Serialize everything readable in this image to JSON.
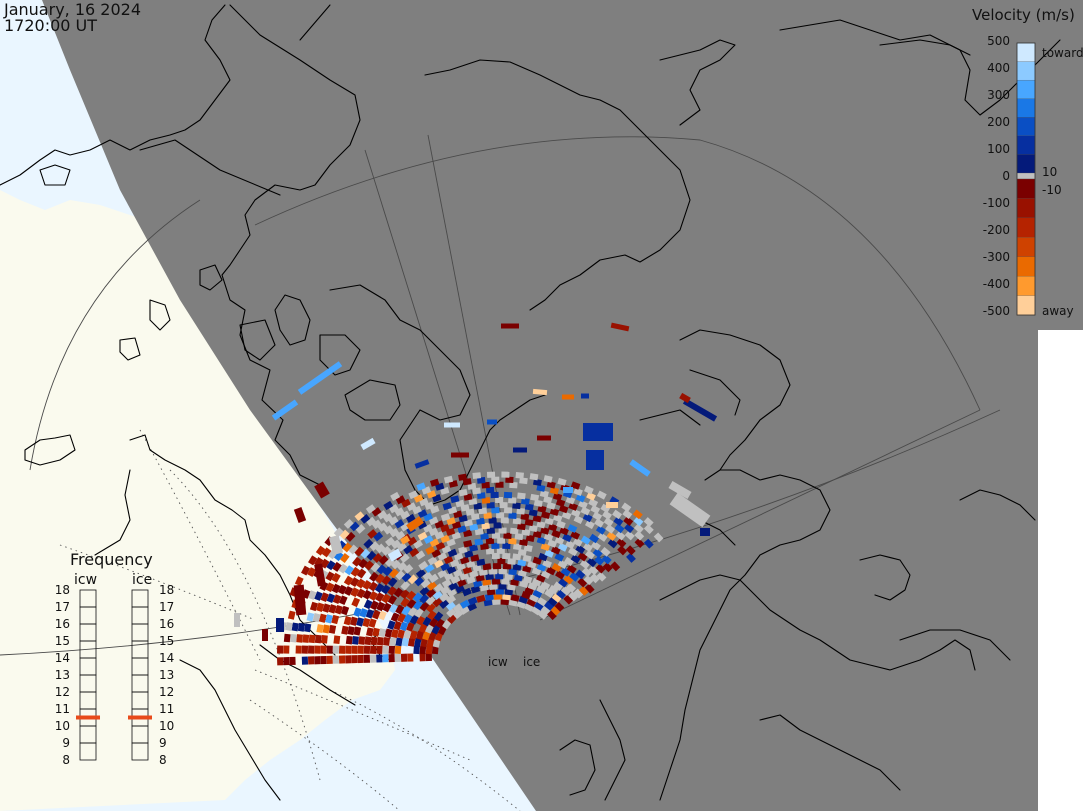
{
  "title": {
    "date": "January, 16 2024",
    "time": "1720:00 UT"
  },
  "colorbar": {
    "title": "Velocity (m/s)",
    "ticks_left": [
      "500",
      "400",
      "300",
      "200",
      "100",
      "0",
      "-100",
      "-200",
      "-300",
      "-400",
      "-500"
    ],
    "label_toward": "toward",
    "label_away": "away",
    "label_pos": "10",
    "label_neg": "-10",
    "toward_colors": [
      "#cfe9ff",
      "#8ccaff",
      "#48a6ff",
      "#1a78e6",
      "#0a4fc4",
      "#062fa0",
      "#041a7a"
    ],
    "away_colors": [
      "#7a0000",
      "#991100",
      "#b52300",
      "#cf4200",
      "#ea6a00",
      "#ff9a2e",
      "#ffcf99"
    ],
    "neutral_color": "#c0c0c0"
  },
  "frequency": {
    "title": "Frequency",
    "columns": [
      {
        "label": "icw",
        "value_mhz": 10.5
      },
      {
        "label": "ice",
        "value_mhz": 10.5
      }
    ],
    "ticks": [
      "18",
      "17",
      "16",
      "15",
      "14",
      "13",
      "12",
      "11",
      "10",
      "9",
      "8"
    ],
    "marker_color": "#e84a1a"
  },
  "stations": [
    {
      "id": "icw",
      "label": "icw"
    },
    {
      "id": "ice",
      "label": "ice"
    }
  ],
  "map": {
    "night_color": "#7f7f7f",
    "day_land_color": "#fafaee",
    "day_ocean_color": "#eaf6ff",
    "grid_color": "#4a4a4a"
  }
}
